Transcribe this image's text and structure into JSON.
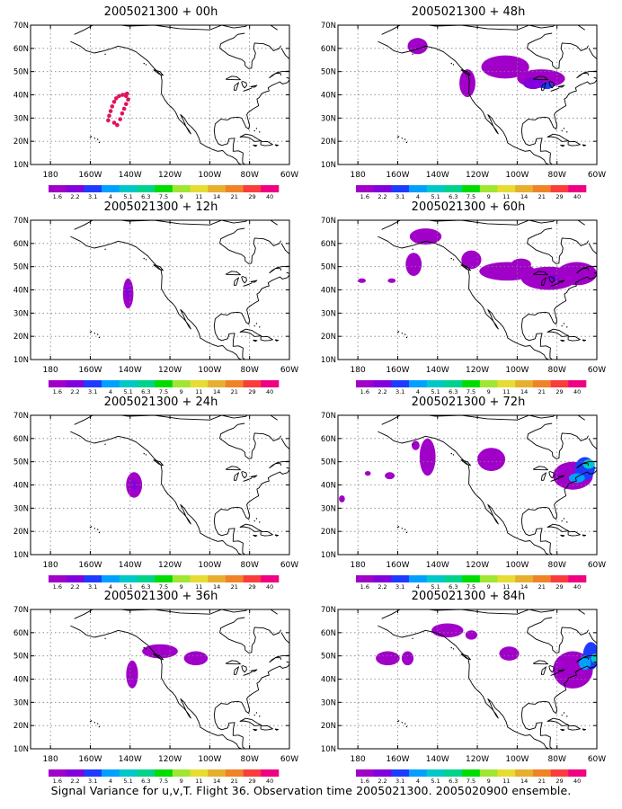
{
  "panels": [
    {
      "title": "2005021300 + 00h"
    },
    {
      "title": "2005021300 + 48h"
    },
    {
      "title": "2005021300 + 12h"
    },
    {
      "title": "2005021300 + 60h"
    },
    {
      "title": "2005021300 + 24h"
    },
    {
      "title": "2005021300 + 72h"
    },
    {
      "title": "2005021300 + 36h"
    },
    {
      "title": "2005021300 + 84h"
    }
  ],
  "lat_labels": [
    "70N",
    "60N",
    "50N",
    "40N",
    "30N",
    "20N",
    "10N"
  ],
  "lon_labels": [
    "180",
    "160W",
    "140W",
    "120W",
    "100W",
    "80W",
    "60W"
  ],
  "colorbar": {
    "labels": [
      "1.6",
      "2.2",
      "3.1",
      "4",
      "5.1",
      "6.3",
      "7.5",
      "9",
      "11",
      "14",
      "21",
      "29",
      "40"
    ],
    "colors": [
      "#a000c8",
      "#8200dc",
      "#1e3cff",
      "#00a0ff",
      "#00c8c8",
      "#00d28c",
      "#00dc00",
      "#a0e632",
      "#e6dc32",
      "#e6af2d",
      "#f08228",
      "#fa3c3c",
      "#f00082"
    ]
  },
  "footer": "Signal Variance for u,v,T. Flight 36. Observation time 2005021300. 2005020900 ensemble."
}
